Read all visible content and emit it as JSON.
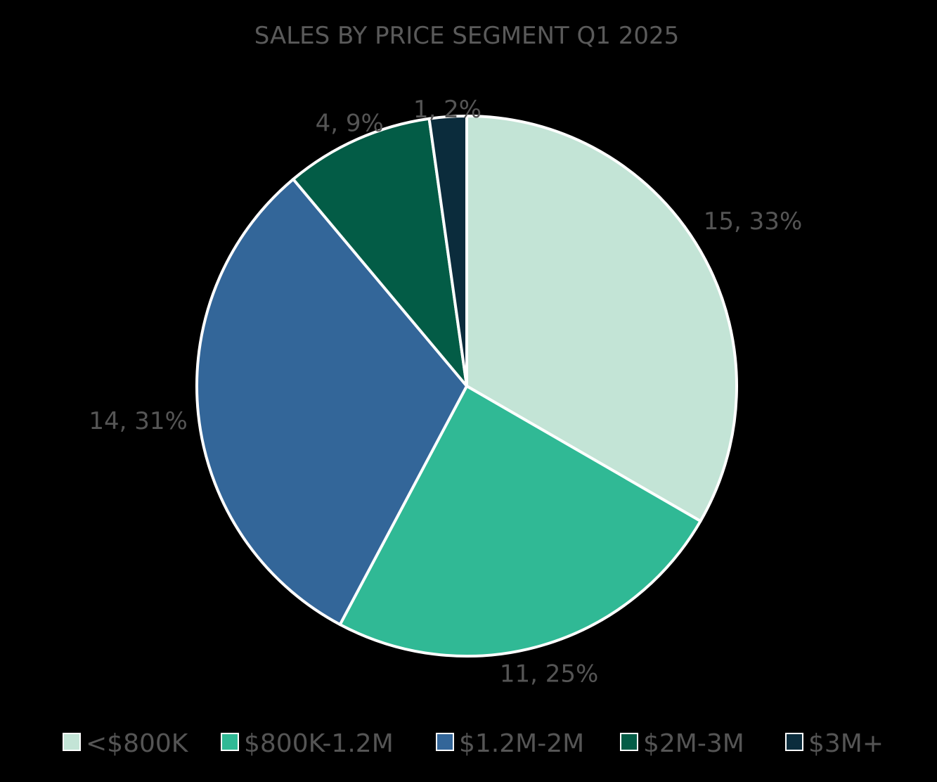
{
  "chart_data": {
    "type": "pie",
    "title": "SALES BY PRICE SEGMENT Q1 2025",
    "categories": [
      "<$800K",
      "$800K-1.2M",
      "$1.2M-2M",
      "$2M-3M",
      "$3M+"
    ],
    "values": [
      15,
      11,
      14,
      4,
      1
    ],
    "percents": [
      33,
      25,
      31,
      9,
      2
    ],
    "labels": [
      "15, 33%",
      "11, 25%",
      "14, 31%",
      "4, 9%",
      "1, 2%"
    ],
    "colors": [
      "#c3e4d6",
      "#30b995",
      "#336699",
      "#035c46",
      "#0b2c3c"
    ],
    "legend_position": "bottom",
    "start_angle_deg": 0,
    "direction": "clockwise"
  }
}
